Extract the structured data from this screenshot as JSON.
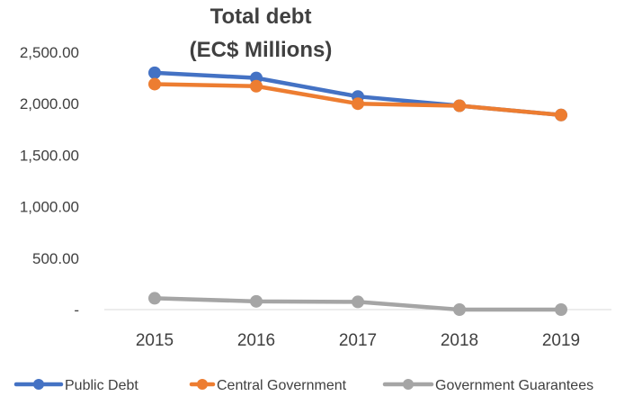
{
  "chart_data": {
    "type": "line",
    "title_line1": "Total debt",
    "title_line2": "(EC$ Millions)",
    "categories": [
      "2015",
      "2016",
      "2017",
      "2018",
      "2019"
    ],
    "series": [
      {
        "name": "Public Debt",
        "color": "#4472C4",
        "values": [
          2300,
          2250,
          2070,
          1980,
          1890
        ]
      },
      {
        "name": "Central Government",
        "color": "#ED7D31",
        "values": [
          2190,
          2170,
          2000,
          1980,
          1890
        ]
      },
      {
        "name": "Government Guarantees",
        "color": "#A5A5A5",
        "values": [
          110,
          80,
          75,
          0,
          0
        ]
      }
    ],
    "y_ticks": [
      "-",
      "500.00",
      "1,000.00",
      "1,500.00",
      "2,000.00",
      "2,500.00"
    ],
    "y_tick_values": [
      0,
      500,
      1000,
      1500,
      2000,
      2500
    ],
    "ylim": [
      0,
      2500
    ],
    "legend_position": "bottom",
    "grid": false
  }
}
